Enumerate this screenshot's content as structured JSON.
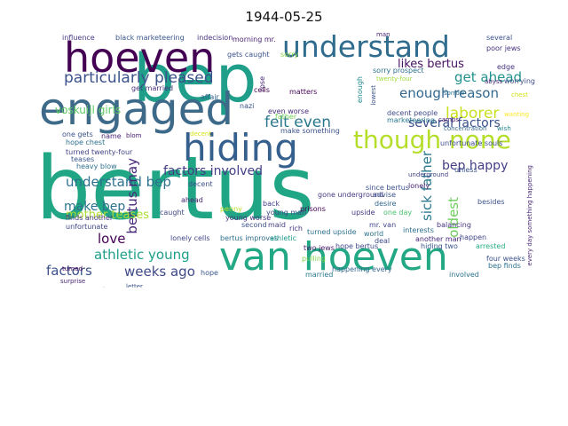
{
  "title": "1944-05-25",
  "words": [
    {
      "text": "bertus",
      "color": "#21a685"
    },
    {
      "text": "bep",
      "color": "#1f9e89"
    },
    {
      "text": "van hoeven",
      "color": "#22a884"
    },
    {
      "text": "hoeven",
      "color": "#440154"
    },
    {
      "text": "engaged",
      "color": "#3e6a8a"
    },
    {
      "text": "understand",
      "color": "#2f6c8e"
    },
    {
      "text": "hiding",
      "color": "#355f8d"
    },
    {
      "text": "though none",
      "color": "#b5de2b"
    },
    {
      "text": "particularly pleased",
      "color": "#3b528b"
    },
    {
      "text": "felt even",
      "color": "#2a788e"
    },
    {
      "text": "voskuijl girls",
      "color": "#5ec962"
    },
    {
      "text": "likes bertus",
      "color": "#471063"
    },
    {
      "text": "get ahead",
      "color": "#21918c"
    },
    {
      "text": "enough reason",
      "color": "#31688e"
    },
    {
      "text": "laborer",
      "color": "#c8e020"
    },
    {
      "text": "several factors",
      "color": "#3b528b"
    },
    {
      "text": "understand bep",
      "color": "#2c728e"
    },
    {
      "text": "bep happy",
      "color": "#433e85"
    },
    {
      "text": "factors involved",
      "color": "#433e85"
    },
    {
      "text": "sick father",
      "color": "#2a788e"
    },
    {
      "text": "bertus may",
      "color": "#482878"
    },
    {
      "text": "mother teases",
      "color": "#addc30"
    },
    {
      "text": "make bep",
      "color": "#2c728e"
    },
    {
      "text": "love",
      "color": "#440154"
    },
    {
      "text": "athletic young",
      "color": "#1f9e89"
    },
    {
      "text": "factors",
      "color": "#3b528b"
    },
    {
      "text": "weeks ago",
      "color": "#3e4a89"
    },
    {
      "text": "oldest",
      "color": "#6ccd5a"
    },
    {
      "text": "influence",
      "color": "#443983"
    },
    {
      "text": "black marketeering",
      "color": "#39568c"
    },
    {
      "text": "indecision",
      "color": "#46327e"
    },
    {
      "text": "morning mr.",
      "color": "#481f70"
    },
    {
      "text": "several",
      "color": "#3b528b"
    },
    {
      "text": "poor jews",
      "color": "#46337f"
    },
    {
      "text": "sorry prospect",
      "color": "#2d708e"
    },
    {
      "text": "abyss",
      "color": "#482576"
    },
    {
      "text": "worrying",
      "color": "#3e4c8a"
    },
    {
      "text": "twenty-four",
      "color": "#9fda3a"
    },
    {
      "text": "decent people",
      "color": "#3f4889"
    },
    {
      "text": "unfortunate souls",
      "color": "#3d4d8a"
    },
    {
      "text": "marketeering",
      "color": "#2a788e"
    },
    {
      "text": "camps",
      "color": "#481769"
    },
    {
      "text": "concentration",
      "color": "#32658e"
    },
    {
      "text": "wish",
      "color": "#25848e"
    },
    {
      "text": "even worse",
      "color": "#472d7b"
    },
    {
      "text": "matters",
      "color": "#440154"
    },
    {
      "text": "make something",
      "color": "#3b528b"
    },
    {
      "text": "hope chest",
      "color": "#2d708e"
    },
    {
      "text": "turned twenty-four",
      "color": "#414487"
    },
    {
      "text": "heavy blow",
      "color": "#2d708e"
    },
    {
      "text": "name",
      "color": "#482475"
    },
    {
      "text": "blom",
      "color": "#481a6c"
    },
    {
      "text": "decent",
      "color": "#d8e219"
    },
    {
      "text": "father",
      "color": "#73d056"
    },
    {
      "text": "nazi",
      "color": "#3b528b"
    },
    {
      "text": "finds another",
      "color": "#453781"
    },
    {
      "text": "unfortunate",
      "color": "#3f4788"
    },
    {
      "text": "caught",
      "color": "#3e4989"
    },
    {
      "text": "young worse",
      "color": "#46327e"
    },
    {
      "text": "since bertus",
      "color": "#3b528b"
    },
    {
      "text": "gone underground",
      "color": "#443a83"
    },
    {
      "text": "desire",
      "color": "#31688e"
    },
    {
      "text": "one day",
      "color": "#4ac16d"
    },
    {
      "text": "lonely",
      "color": "#482173"
    },
    {
      "text": "underground",
      "color": "#414487"
    },
    {
      "text": "lonely cells",
      "color": "#404688"
    },
    {
      "text": "bertus improves",
      "color": "#2e6f8e"
    },
    {
      "text": "athletic",
      "color": "#1e9b8a"
    },
    {
      "text": "prisons",
      "color": "#440154"
    },
    {
      "text": "hope bertus",
      "color": "#3e4a89"
    },
    {
      "text": "hiding two",
      "color": "#39558c"
    },
    {
      "text": "arrested",
      "color": "#25ab82"
    },
    {
      "text": "another man",
      "color": "#482878"
    },
    {
      "text": "happen",
      "color": "#3f4788"
    },
    {
      "text": "four weeks",
      "color": "#3b528b"
    },
    {
      "text": "bep finds",
      "color": "#2c728e"
    },
    {
      "text": "involved",
      "color": "#2c728e"
    },
    {
      "text": "married",
      "color": "#2a788e"
    },
    {
      "text": "pulling",
      "color": "#7fd34e"
    },
    {
      "text": "two jews",
      "color": "#481c6e"
    },
    {
      "text": "turned upside",
      "color": "#2d708e"
    },
    {
      "text": "rich",
      "color": "#46307e"
    },
    {
      "text": "second",
      "color": "#3b528b"
    },
    {
      "text": "maid",
      "color": "#433e85"
    },
    {
      "text": "unless",
      "color": "#3b528b"
    },
    {
      "text": "upside",
      "color": "#453581"
    },
    {
      "text": "young man",
      "color": "#3e4a89"
    },
    {
      "text": "mr. van",
      "color": "#404588"
    },
    {
      "text": "besides",
      "color": "#3b528b"
    },
    {
      "text": "every day something happening",
      "color": "#482878"
    },
    {
      "text": "ahead",
      "color": "#482475"
    },
    {
      "text": "decent",
      "color": "#3b528b"
    },
    {
      "text": "get married",
      "color": "#472f7d"
    },
    {
      "text": "affair",
      "color": "#33638d"
    },
    {
      "text": "rose",
      "color": "#482677"
    },
    {
      "text": "enough",
      "color": "#23898e"
    },
    {
      "text": "lowest",
      "color": "#3b528b"
    },
    {
      "text": "sorry",
      "color": "#8fd744"
    },
    {
      "text": "sorrow",
      "color": "#2d708e"
    },
    {
      "text": "cells",
      "color": "#440154"
    },
    {
      "text": "edge",
      "color": "#46337f"
    },
    {
      "text": "chest",
      "color": "#d2e21b"
    },
    {
      "text": "wanting",
      "color": "#fde725"
    },
    {
      "text": "man",
      "color": "#482677"
    },
    {
      "text": "teases",
      "color": "#39568c"
    },
    {
      "text": "letter",
      "color": "#3b528b"
    },
    {
      "text": "surprise",
      "color": "#482475"
    },
    {
      "text": "turned",
      "color": "#440154"
    },
    {
      "text": "advise",
      "color": "#3b528b"
    },
    {
      "text": "balancing",
      "color": "#46337f"
    },
    {
      "text": "world",
      "color": "#2c728e"
    },
    {
      "text": "deal",
      "color": "#3e4a89"
    },
    {
      "text": "back",
      "color": "#433e85"
    },
    {
      "text": "one gets",
      "color": "#3b528b"
    },
    {
      "text": "penny",
      "color": "#bddf26"
    },
    {
      "text": "gets caught",
      "color": "#3b528b"
    },
    {
      "text": "happening every",
      "color": "#31688e"
    },
    {
      "text": "interests",
      "color": "#2d708e"
    },
    {
      "text": "hope",
      "color": "#39568c"
    },
    {
      "text": "appreciate",
      "color": "#3e4a89"
    },
    {
      "text": "sick",
      "color": "#46337f"
    }
  ]
}
